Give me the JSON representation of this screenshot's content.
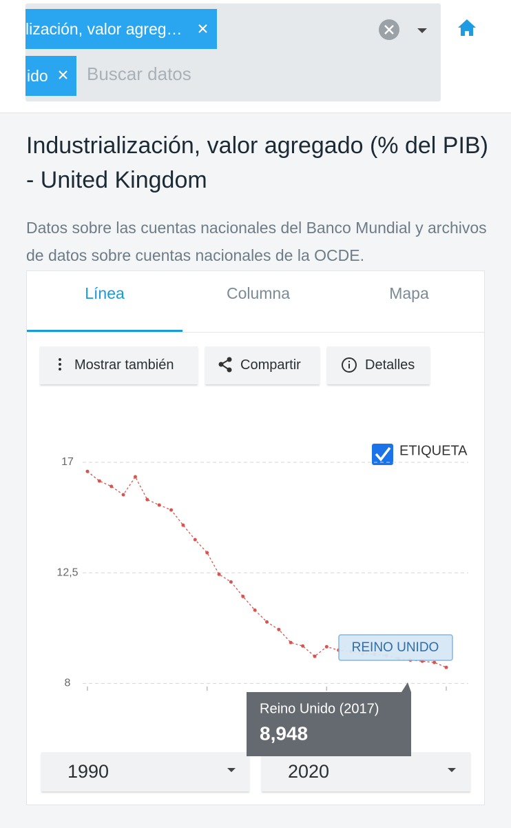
{
  "search": {
    "chips": [
      "lización, valor agreg…",
      "ido"
    ],
    "placeholder": "Buscar datos"
  },
  "header": {
    "title": "Industrialización, valor agregado (% del PIB) - United Kingdom",
    "source": "Datos sobre las cuentas nacionales del Banco Mundial y archivos de datos sobre cuentas nacionales de la OCDE."
  },
  "tabs": [
    "Línea",
    "Columna",
    "Mapa"
  ],
  "buttons": [
    "Mostrar también",
    "Compartir",
    "Detalles"
  ],
  "chart_data": {
    "type": "line",
    "label_toggle": "ETIQUETA",
    "x": [
      1990,
      1991,
      1992,
      1993,
      1994,
      1995,
      1996,
      1997,
      1998,
      1999,
      2000,
      2001,
      2002,
      2003,
      2004,
      2005,
      2006,
      2007,
      2008,
      2009,
      2010,
      2011,
      2012,
      2013,
      2014,
      2015,
      2016,
      2017,
      2018,
      2019,
      2020
    ],
    "series": [
      {
        "name": "REINO UNIDO",
        "color": "#d9534f",
        "values": [
          16.63,
          16.24,
          16.02,
          15.68,
          16.41,
          15.48,
          15.26,
          15.06,
          14.44,
          13.85,
          13.32,
          12.44,
          12.13,
          11.54,
          10.98,
          10.5,
          10.19,
          9.66,
          9.52,
          9.1,
          9.49,
          9.35,
          9.3,
          9.21,
          9.18,
          9.13,
          9.01,
          8.948,
          8.9,
          8.85,
          8.65
        ]
      }
    ],
    "xlim": [
      1990,
      2020
    ],
    "xticks": [
      1990,
      2000,
      2010,
      2020
    ],
    "ylim": [
      7.7,
      17.9
    ],
    "yticks": [
      8,
      {
        "value": 12.5,
        "label": "12,5"
      },
      17
    ],
    "grid": true,
    "tooltip": {
      "title": "Reino Unido (2017)",
      "value": "8,948"
    }
  },
  "range": {
    "from": "1990",
    "to": "2020"
  }
}
